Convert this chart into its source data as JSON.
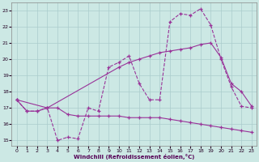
{
  "xlabel": "Windchill (Refroidissement éolien,°C)",
  "background_color": "#cce8e4",
  "grid_color": "#aacccc",
  "line_color": "#993399",
  "xlim_min": -0.5,
  "xlim_max": 23.5,
  "ylim_min": 14.65,
  "ylim_max": 23.5,
  "yticks": [
    15,
    16,
    17,
    18,
    19,
    20,
    21,
    22,
    23
  ],
  "xticks": [
    0,
    1,
    2,
    3,
    4,
    5,
    6,
    7,
    8,
    9,
    10,
    11,
    12,
    13,
    14,
    15,
    16,
    17,
    18,
    19,
    20,
    21,
    22,
    23
  ],
  "line1_x": [
    0,
    1,
    2,
    3,
    4,
    5,
    6,
    7,
    8,
    9,
    10,
    11,
    12,
    13,
    14,
    15,
    16,
    17,
    18,
    19,
    20,
    21,
    22,
    23
  ],
  "line1_y": [
    17.5,
    16.8,
    16.8,
    17.0,
    15.0,
    15.2,
    15.1,
    17.0,
    16.8,
    19.5,
    19.8,
    20.2,
    18.5,
    17.5,
    17.5,
    22.3,
    22.8,
    22.7,
    23.1,
    22.1,
    20.0,
    18.3,
    17.1,
    17.0
  ],
  "line2_x": [
    0,
    1,
    2,
    3,
    4,
    5,
    6,
    7,
    8,
    9,
    10,
    11,
    12,
    13,
    14,
    15,
    16,
    17,
    18,
    19,
    20,
    21,
    22,
    23
  ],
  "line2_y": [
    17.5,
    16.8,
    16.8,
    17.0,
    17.0,
    16.6,
    16.5,
    16.5,
    16.5,
    16.5,
    16.5,
    16.4,
    16.4,
    16.4,
    16.4,
    16.3,
    16.2,
    16.1,
    16.0,
    15.9,
    15.8,
    15.7,
    15.6,
    15.5
  ],
  "line3_x": [
    0,
    3,
    10,
    11,
    12,
    13,
    14,
    15,
    16,
    17,
    18,
    19,
    20,
    21,
    22,
    23
  ],
  "line3_y": [
    17.5,
    17.0,
    19.5,
    19.8,
    20.0,
    20.2,
    20.4,
    20.5,
    20.6,
    20.7,
    20.9,
    21.0,
    20.1,
    18.5,
    18.0,
    17.1
  ]
}
